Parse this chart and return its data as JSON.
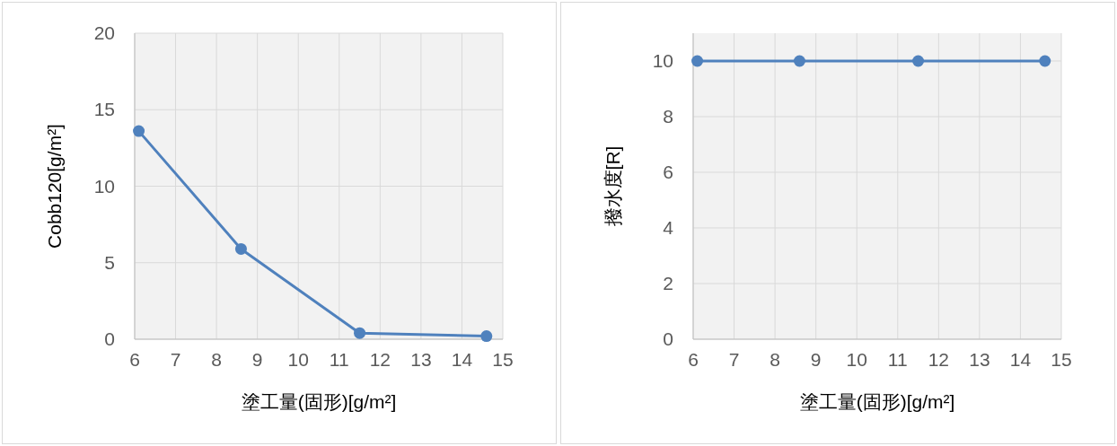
{
  "chart_data": [
    {
      "type": "line",
      "x": [
        6.1,
        8.6,
        11.5,
        14.6
      ],
      "series": [
        {
          "color": "#4f81bd",
          "values": [
            13.6,
            5.9,
            0.4,
            0.2
          ]
        }
      ],
      "xlim": [
        6,
        15
      ],
      "xticks": [
        6,
        7,
        8,
        9,
        10,
        11,
        12,
        13,
        14,
        15
      ],
      "ylim": [
        0,
        20
      ],
      "yticks": [
        0,
        5,
        10,
        15,
        20
      ],
      "xlabel": "塗工量(固形)[g/m²]",
      "ylabel": "Cobb120[g/m²]",
      "grid": true,
      "marker": "circle",
      "line_style": "solid"
    },
    {
      "type": "line",
      "x": [
        6.1,
        8.6,
        11.5,
        14.6
      ],
      "series": [
        {
          "color": "#4f81bd",
          "values": [
            10,
            10,
            10,
            10
          ]
        }
      ],
      "xlim": [
        6,
        15
      ],
      "xticks": [
        6,
        7,
        8,
        9,
        10,
        11,
        12,
        13,
        14,
        15
      ],
      "ylim": [
        0,
        11
      ],
      "yticks": [
        0,
        2,
        4,
        6,
        8,
        10
      ],
      "xlabel": "塗工量(固形)[g/m²]",
      "ylabel": "撥水度[R]",
      "grid": true,
      "marker": "circle",
      "line_style": "solid"
    }
  ]
}
